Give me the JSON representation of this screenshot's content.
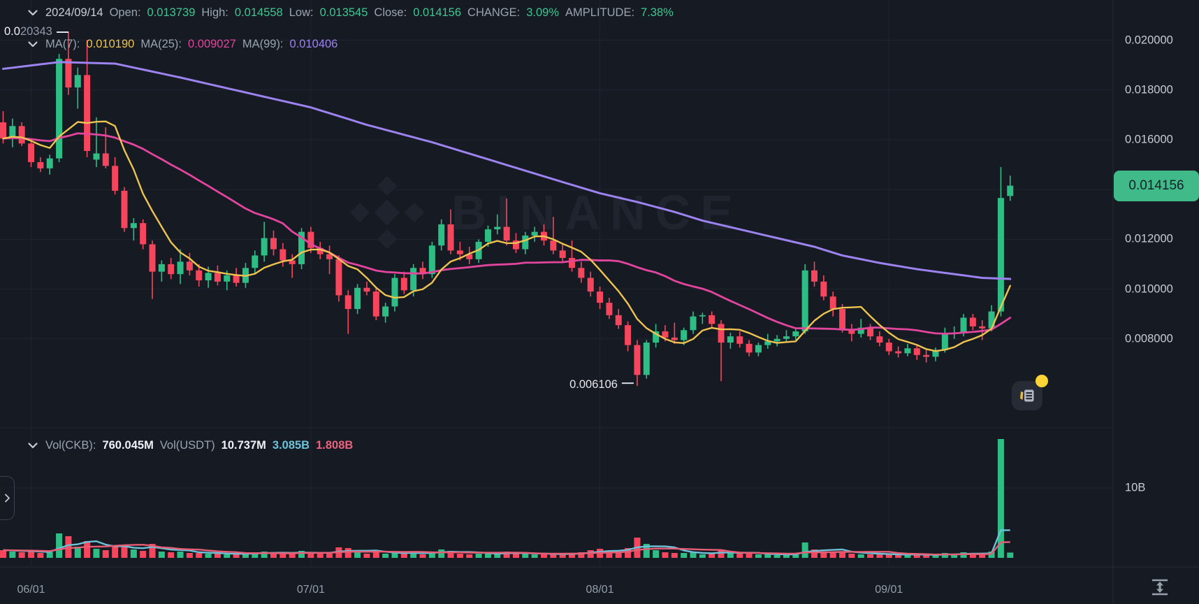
{
  "legend": {
    "ohlc": {
      "date": "2024/09/14",
      "open_label": "Open:",
      "open": "0.013739",
      "high_label": "High:",
      "high": "0.014558",
      "low_label": "Low:",
      "low": "0.013545",
      "close_label": "Close:",
      "close": "0.014156",
      "change_label": "CHANGE:",
      "change": "3.09%",
      "amplitude_label": "AMPLITUDE:",
      "amplitude": "7.38%"
    },
    "ma": {
      "ma7_label": "MA(7):",
      "ma7": "0.010190",
      "ma25_label": "MA(25):",
      "ma25": "0.009027",
      "ma99_label": "MA(99):",
      "ma99": "0.010406"
    },
    "volume": {
      "vol_base_label": "Vol(CKB):",
      "vol_base": "760.045M",
      "vol_quote_label": "Vol(USDT)",
      "vol_quote": "10.737M",
      "vol_ma_fast": "3.085B",
      "vol_ma_slow": "1.808B"
    }
  },
  "annotations": {
    "high_prefix": "0.0",
    "high_rest": "20343",
    "high_value": 0.020343,
    "low_text": "0.006106",
    "low_value": 0.006106
  },
  "last_price": {
    "label": "0.014156",
    "value": 0.014156
  },
  "watermark": {
    "text": "BINANCE"
  },
  "colors": {
    "background": "#161A23",
    "grid": "#20252F",
    "axis_line": "#262B36",
    "up": "#2EBD85",
    "down": "#F6465D",
    "ma7": "#EFC350",
    "ma25": "#E2459E",
    "ma99": "#9D83F0",
    "vol_ma_fast": "#6EC2D8",
    "vol_ma_slow": "#E65E76",
    "badge_bg": "#3FBA88",
    "badge_text": "#142028",
    "label_gray": "#9AA3B0",
    "value_green": "#3FC690",
    "axis_text": "#C6CCD5",
    "annotation_text": "#E4E7EC",
    "notification_dot": "#FBD535"
  },
  "chart_data": {
    "type": "candlestick",
    "title": "CKB/USDT daily candlestick chart with MA(7), MA(25), MA(99) and volume pane",
    "x_axis": "date (2024, MM/DD)",
    "y_axis": "price (USDT)",
    "price_ticks": [
      {
        "label": "0.020000",
        "value": 0.02
      },
      {
        "label": "0.018000",
        "value": 0.018
      },
      {
        "label": "0.016000",
        "value": 0.016
      },
      {
        "label": "0.012000",
        "value": 0.012
      },
      {
        "label": "0.010000",
        "value": 0.01
      },
      {
        "label": "0.008000",
        "value": 0.008
      }
    ],
    "grid_price_levels": [
      0.02,
      0.018,
      0.016,
      0.014,
      0.012,
      0.01,
      0.008
    ],
    "time_ticks": [
      {
        "label": "06/01",
        "index": 3
      },
      {
        "label": "07/01",
        "index": 33
      },
      {
        "label": "08/01",
        "index": 64
      },
      {
        "label": "09/01",
        "index": 95
      }
    ],
    "volume_tick": {
      "label": "10B",
      "value": 10
    },
    "volume_unit": "billions of CKB",
    "view_high": 0.020343,
    "view_low": 0.006106,
    "columns": [
      "date",
      "open",
      "high",
      "low",
      "close",
      "volume_B"
    ],
    "candles": [
      [
        "05/29",
        0.0167,
        0.01715,
        0.01585,
        0.01605,
        1.1
      ],
      [
        "05/30",
        0.01605,
        0.01685,
        0.0157,
        0.01655,
        0.9
      ],
      [
        "05/31",
        0.01655,
        0.0167,
        0.01575,
        0.01585,
        0.8
      ],
      [
        "06/01",
        0.01585,
        0.016,
        0.0149,
        0.0151,
        1.0
      ],
      [
        "06/02",
        0.0151,
        0.0153,
        0.0147,
        0.01485,
        0.7
      ],
      [
        "06/03",
        0.01485,
        0.0154,
        0.0146,
        0.01525,
        0.8
      ],
      [
        "06/04",
        0.01525,
        0.01945,
        0.0151,
        0.01925,
        3.5
      ],
      [
        "06/05",
        0.01925,
        0.020343,
        0.0178,
        0.0181,
        3.1
      ],
      [
        "06/06",
        0.0181,
        0.0189,
        0.01725,
        0.0186,
        1.6
      ],
      [
        "06/07",
        0.0186,
        0.02,
        0.0153,
        0.01555,
        2.4
      ],
      [
        "06/08",
        0.0152,
        0.0169,
        0.0149,
        0.01545,
        1.3
      ],
      [
        "06/09",
        0.01545,
        0.0165,
        0.01485,
        0.01495,
        1.1
      ],
      [
        "06/10",
        0.01495,
        0.0153,
        0.0138,
        0.01395,
        1.8
      ],
      [
        "06/11",
        0.01395,
        0.0141,
        0.0123,
        0.01245,
        1.8
      ],
      [
        "06/12",
        0.01245,
        0.01285,
        0.01195,
        0.01265,
        1.2
      ],
      [
        "06/13",
        0.01265,
        0.0128,
        0.0116,
        0.0118,
        1.0
      ],
      [
        "06/14",
        0.0118,
        0.01195,
        0.0096,
        0.0107,
        2.0
      ],
      [
        "06/15",
        0.0107,
        0.01115,
        0.0103,
        0.011,
        0.9
      ],
      [
        "06/16",
        0.011,
        0.01125,
        0.0104,
        0.0106,
        0.8
      ],
      [
        "06/17",
        0.0106,
        0.0116,
        0.0102,
        0.0111,
        0.9
      ],
      [
        "06/18",
        0.0111,
        0.01145,
        0.01055,
        0.01075,
        0.7
      ],
      [
        "06/19",
        0.01075,
        0.011,
        0.0101,
        0.01035,
        0.7
      ],
      [
        "06/20",
        0.01035,
        0.0109,
        0.01005,
        0.01065,
        0.6
      ],
      [
        "06/21",
        0.01065,
        0.01095,
        0.01015,
        0.0103,
        0.6
      ],
      [
        "06/22",
        0.0103,
        0.01075,
        0.00995,
        0.01055,
        0.5
      ],
      [
        "06/23",
        0.01055,
        0.01085,
        0.0101,
        0.01025,
        0.5
      ],
      [
        "06/24",
        0.01025,
        0.01105,
        0.01005,
        0.01085,
        0.7
      ],
      [
        "06/25",
        0.01085,
        0.01155,
        0.0106,
        0.01135,
        0.8
      ],
      [
        "06/26",
        0.01135,
        0.0127,
        0.0111,
        0.01205,
        0.9
      ],
      [
        "06/27",
        0.01205,
        0.01235,
        0.01135,
        0.0116,
        0.7
      ],
      [
        "06/28",
        0.0116,
        0.01185,
        0.0109,
        0.01115,
        0.6
      ],
      [
        "06/29",
        0.01115,
        0.0114,
        0.01045,
        0.011,
        0.6
      ],
      [
        "06/30",
        0.011,
        0.01245,
        0.0108,
        0.0123,
        1.0
      ],
      [
        "07/01",
        0.0123,
        0.0125,
        0.01145,
        0.01165,
        0.8
      ],
      [
        "07/02",
        0.01165,
        0.0119,
        0.0112,
        0.0114,
        0.6
      ],
      [
        "07/03",
        0.0114,
        0.01175,
        0.0106,
        0.0112,
        0.6
      ],
      [
        "07/04",
        0.0112,
        0.01135,
        0.0095,
        0.00975,
        1.5
      ],
      [
        "07/05",
        0.00975,
        0.00995,
        0.0082,
        0.0092,
        1.4
      ],
      [
        "07/06",
        0.0092,
        0.0102,
        0.009,
        0.01005,
        1.0
      ],
      [
        "07/07",
        0.01005,
        0.0103,
        0.00975,
        0.0099,
        0.6
      ],
      [
        "07/08",
        0.0099,
        0.01005,
        0.00875,
        0.0089,
        0.8
      ],
      [
        "07/09",
        0.0089,
        0.00945,
        0.00865,
        0.0093,
        0.6
      ],
      [
        "07/10",
        0.0093,
        0.0106,
        0.0091,
        0.01045,
        0.8
      ],
      [
        "07/11",
        0.01045,
        0.0107,
        0.0098,
        0.00995,
        0.6
      ],
      [
        "07/12",
        0.00995,
        0.011,
        0.0097,
        0.01085,
        0.8
      ],
      [
        "07/13",
        0.01085,
        0.0111,
        0.0104,
        0.0106,
        0.5
      ],
      [
        "07/14",
        0.0106,
        0.0119,
        0.01045,
        0.01175,
        0.9
      ],
      [
        "07/15",
        0.01175,
        0.0128,
        0.01155,
        0.0126,
        1.2
      ],
      [
        "07/16",
        0.0126,
        0.0132,
        0.0114,
        0.01155,
        1.0
      ],
      [
        "07/17",
        0.01155,
        0.0119,
        0.01115,
        0.0114,
        0.6
      ],
      [
        "07/18",
        0.0114,
        0.0117,
        0.011,
        0.0112,
        0.5
      ],
      [
        "07/19",
        0.0112,
        0.012,
        0.01105,
        0.0119,
        0.6
      ],
      [
        "07/20",
        0.0119,
        0.01255,
        0.0117,
        0.0124,
        0.7
      ],
      [
        "07/21",
        0.0124,
        0.013,
        0.0122,
        0.0125,
        0.6
      ],
      [
        "07/22",
        0.0125,
        0.01364,
        0.01175,
        0.01195,
        0.9
      ],
      [
        "07/23",
        0.01195,
        0.01225,
        0.01145,
        0.0116,
        0.6
      ],
      [
        "07/24",
        0.0116,
        0.0123,
        0.0114,
        0.01215,
        0.6
      ],
      [
        "07/25",
        0.01215,
        0.0125,
        0.0119,
        0.0123,
        0.5
      ],
      [
        "07/26",
        0.0123,
        0.0126,
        0.01175,
        0.01195,
        0.5
      ],
      [
        "07/27",
        0.01195,
        0.0129,
        0.0114,
        0.01155,
        0.6
      ],
      [
        "07/28",
        0.01155,
        0.0118,
        0.01105,
        0.01125,
        0.5
      ],
      [
        "07/29",
        0.01125,
        0.01195,
        0.0107,
        0.01085,
        0.7
      ],
      [
        "07/30",
        0.01085,
        0.0111,
        0.01025,
        0.01045,
        0.8
      ],
      [
        "07/31",
        0.01045,
        0.0107,
        0.0097,
        0.0099,
        1.1
      ],
      [
        "08/01",
        0.0099,
        0.0101,
        0.0092,
        0.00945,
        1.3
      ],
      [
        "08/02",
        0.00945,
        0.00965,
        0.0088,
        0.00895,
        1.0
      ],
      [
        "08/03",
        0.00895,
        0.0092,
        0.0084,
        0.00855,
        0.9
      ],
      [
        "08/04",
        0.00855,
        0.0087,
        0.0075,
        0.00775,
        1.4
      ],
      [
        "08/05",
        0.00775,
        0.00795,
        0.006106,
        0.00655,
        2.9
      ],
      [
        "08/06",
        0.00655,
        0.00795,
        0.0064,
        0.00785,
        2.0
      ],
      [
        "08/07",
        0.00785,
        0.0086,
        0.00765,
        0.0083,
        1.1
      ],
      [
        "08/08",
        0.0083,
        0.00855,
        0.0079,
        0.00805,
        0.8
      ],
      [
        "08/09",
        0.00805,
        0.00865,
        0.0078,
        0.00795,
        0.7
      ],
      [
        "08/10",
        0.00795,
        0.00845,
        0.00775,
        0.00835,
        0.7
      ],
      [
        "08/11",
        0.00835,
        0.0091,
        0.0082,
        0.0089,
        0.8
      ],
      [
        "08/12",
        0.0089,
        0.00905,
        0.0086,
        0.00895,
        0.5
      ],
      [
        "08/13",
        0.00895,
        0.0091,
        0.00845,
        0.0086,
        0.6
      ],
      [
        "08/14",
        0.0086,
        0.00875,
        0.0063,
        0.00785,
        1.2
      ],
      [
        "08/15",
        0.00785,
        0.00825,
        0.0076,
        0.0081,
        0.7
      ],
      [
        "08/16",
        0.0081,
        0.0083,
        0.00765,
        0.0078,
        0.6
      ],
      [
        "08/17",
        0.0078,
        0.00795,
        0.0073,
        0.00745,
        0.6
      ],
      [
        "08/18",
        0.00745,
        0.00785,
        0.0073,
        0.00775,
        0.5
      ],
      [
        "08/19",
        0.00775,
        0.0082,
        0.0076,
        0.0079,
        0.5
      ],
      [
        "08/20",
        0.0079,
        0.00815,
        0.0077,
        0.008,
        0.4
      ],
      [
        "08/21",
        0.008,
        0.00835,
        0.00785,
        0.0081,
        0.5
      ],
      [
        "08/22",
        0.0081,
        0.00845,
        0.00795,
        0.0083,
        0.6
      ],
      [
        "08/23",
        0.0083,
        0.011,
        0.0082,
        0.01075,
        2.2
      ],
      [
        "08/24",
        0.01075,
        0.0111,
        0.0101,
        0.0103,
        1.2
      ],
      [
        "08/25",
        0.0103,
        0.01055,
        0.00955,
        0.0097,
        0.9
      ],
      [
        "08/26",
        0.0097,
        0.0099,
        0.0089,
        0.0092,
        0.8
      ],
      [
        "08/27",
        0.0092,
        0.0094,
        0.00825,
        0.0084,
        0.9
      ],
      [
        "08/28",
        0.0084,
        0.0086,
        0.0079,
        0.0082,
        0.6
      ],
      [
        "08/29",
        0.0082,
        0.0088,
        0.00805,
        0.00845,
        0.5
      ],
      [
        "08/30",
        0.00845,
        0.0086,
        0.00795,
        0.0081,
        0.5
      ],
      [
        "08/31",
        0.0081,
        0.0083,
        0.0077,
        0.00785,
        0.5
      ],
      [
        "09/01",
        0.00785,
        0.008,
        0.00735,
        0.0075,
        0.6
      ],
      [
        "09/02",
        0.0075,
        0.0077,
        0.00725,
        0.00742,
        0.4
      ],
      [
        "09/03",
        0.00742,
        0.0078,
        0.0073,
        0.00762,
        0.4
      ],
      [
        "09/04",
        0.00762,
        0.00775,
        0.00715,
        0.00735,
        0.5
      ],
      [
        "09/05",
        0.00735,
        0.00755,
        0.00705,
        0.00728,
        0.4
      ],
      [
        "09/06",
        0.00728,
        0.00765,
        0.0071,
        0.00755,
        0.4
      ],
      [
        "09/07",
        0.00755,
        0.00845,
        0.00745,
        0.0082,
        0.7
      ],
      [
        "09/08",
        0.0082,
        0.0085,
        0.008,
        0.00825,
        0.5
      ],
      [
        "09/09",
        0.00825,
        0.009,
        0.0081,
        0.00885,
        0.8
      ],
      [
        "09/10",
        0.00885,
        0.009,
        0.00835,
        0.0085,
        0.6
      ],
      [
        "09/11",
        0.0085,
        0.00875,
        0.00795,
        0.00842,
        0.5
      ],
      [
        "09/12",
        0.00842,
        0.00935,
        0.0083,
        0.0091,
        0.9
      ],
      [
        "09/13",
        0.0091,
        0.0149,
        0.0089,
        0.01366,
        17.0
      ],
      [
        "09/14",
        0.013739,
        0.014558,
        0.013545,
        0.014156,
        0.76
      ]
    ],
    "ma99_anchor_points": [
      [
        0,
        0.01885
      ],
      [
        6,
        0.01912
      ],
      [
        12,
        0.01906
      ],
      [
        19,
        0.0185
      ],
      [
        26,
        0.0179
      ],
      [
        33,
        0.0173
      ],
      [
        39,
        0.0166
      ],
      [
        46,
        0.0159
      ],
      [
        53,
        0.0151
      ],
      [
        60,
        0.0143
      ],
      [
        64,
        0.01385
      ],
      [
        68,
        0.0135
      ],
      [
        72,
        0.0131
      ],
      [
        75,
        0.01275
      ],
      [
        79,
        0.0124
      ],
      [
        83,
        0.01205
      ],
      [
        87,
        0.0117
      ],
      [
        90,
        0.01135
      ],
      [
        94,
        0.01105
      ],
      [
        98,
        0.0108
      ],
      [
        102,
        0.0106
      ],
      [
        105,
        0.01045
      ],
      [
        108,
        0.010406
      ]
    ],
    "legend_position": "top-left",
    "grid": true
  }
}
